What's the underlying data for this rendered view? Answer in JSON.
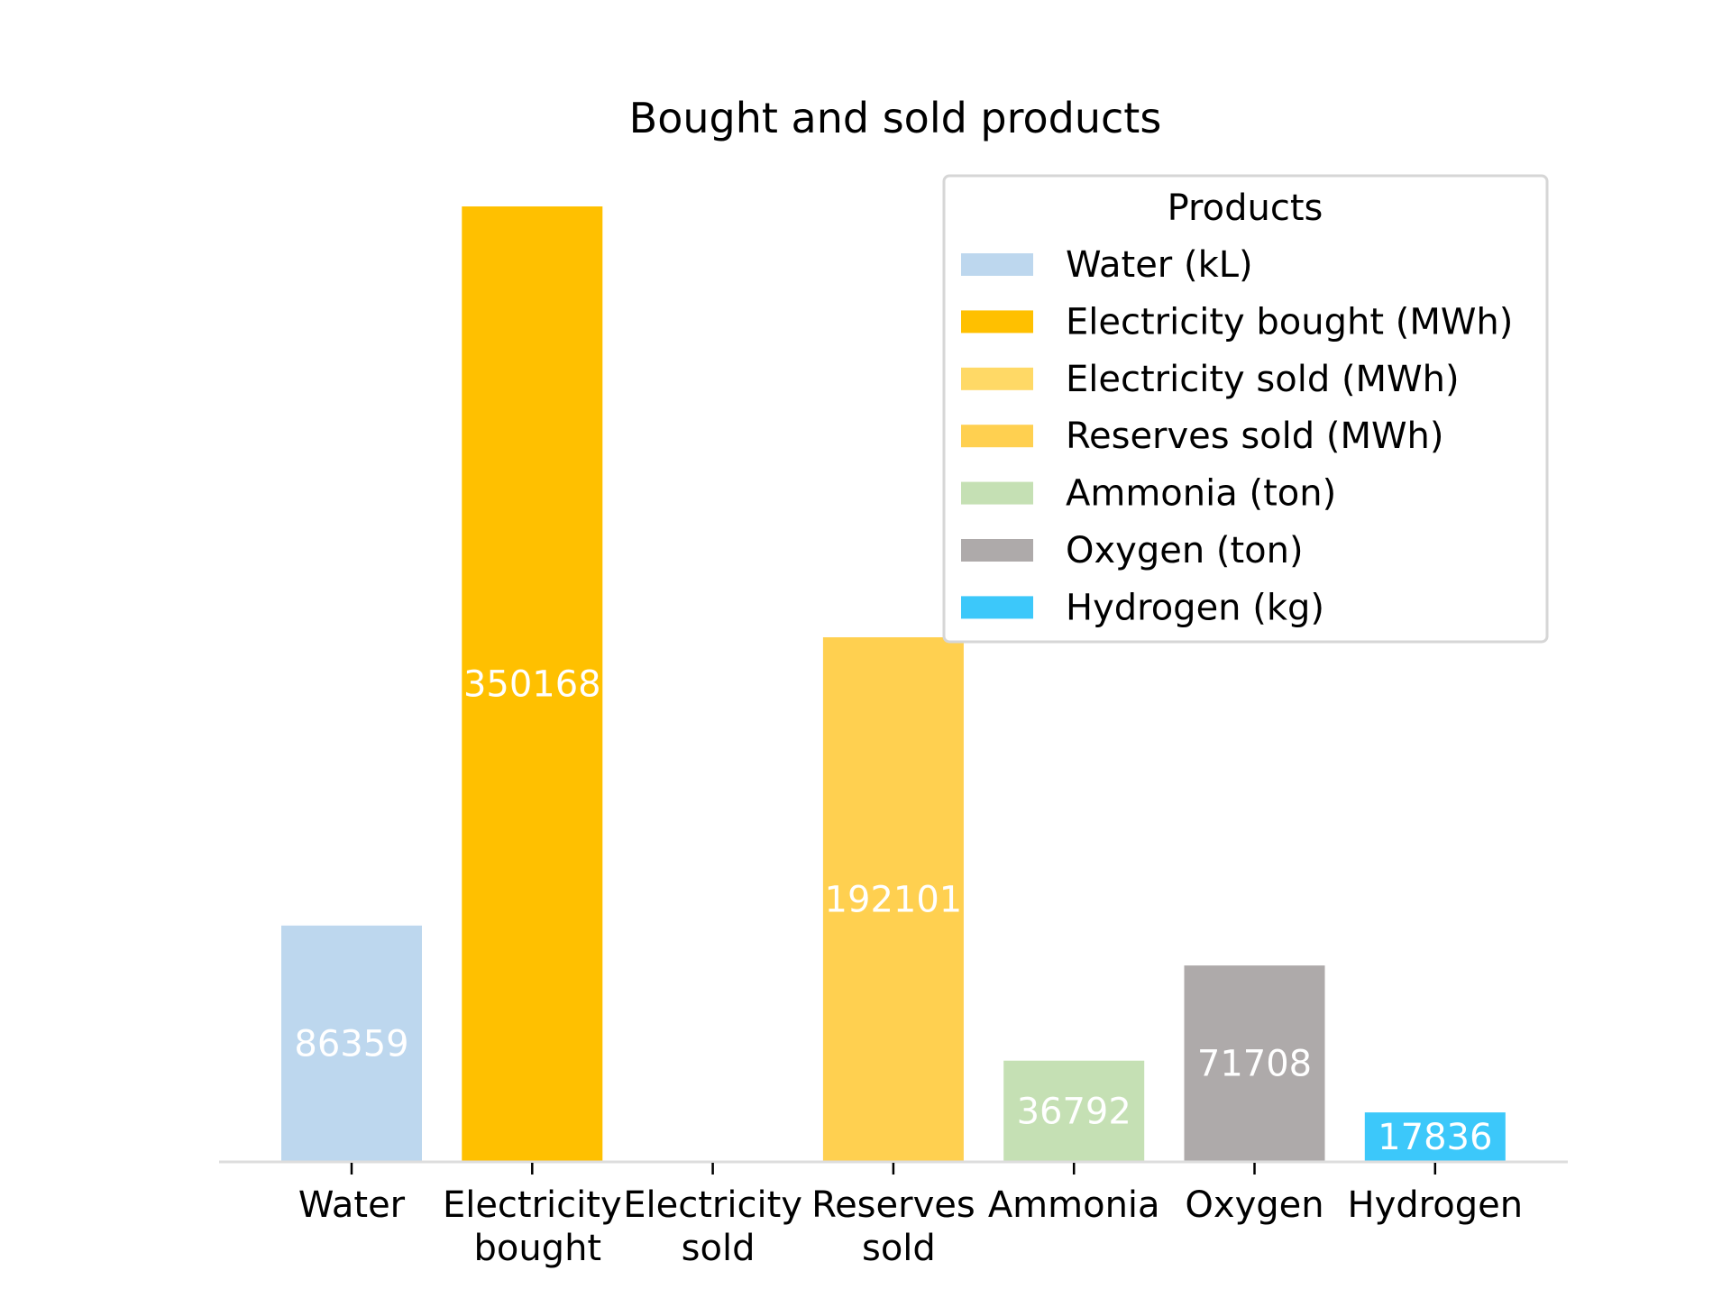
{
  "chart_data": {
    "type": "bar",
    "title": "Bought and sold products",
    "xlabel": "",
    "ylabel": "",
    "ylim": [
      0,
      370000
    ],
    "grid": false,
    "legend_position": "top-right",
    "legend_title": "Products",
    "categories": [
      [
        "Water"
      ],
      [
        "Electricity",
        "bought"
      ],
      [
        "Electricity",
        "sold"
      ],
      [
        "Reserves",
        "sold"
      ],
      [
        "Ammonia"
      ],
      [
        "Oxygen"
      ],
      [
        "Hydrogen"
      ]
    ],
    "values": [
      86359,
      350168,
      0,
      192101,
      36792,
      71708,
      17836
    ],
    "value_labels": [
      "86359",
      "350168",
      "",
      "192101",
      "36792",
      "71708",
      "17836"
    ],
    "colors": [
      "#bdd7ee",
      "#ffc000",
      "#ffd966",
      "#ffd050",
      "#c5e0b4",
      "#aeaaaa",
      "#3cc8fa"
    ],
    "legend": [
      {
        "label": "Water (kL)",
        "color": "#bdd7ee"
      },
      {
        "label": "Electricity bought (MWh)",
        "color": "#ffc000"
      },
      {
        "label": "Electricity sold (MWh)",
        "color": "#ffd966"
      },
      {
        "label": "Reserves sold (MWh)",
        "color": "#ffd050"
      },
      {
        "label": "Ammonia (ton)",
        "color": "#c5e0b4"
      },
      {
        "label": "Oxygen (ton)",
        "color": "#aeaaaa"
      },
      {
        "label": "Hydrogen (kg)",
        "color": "#3cc8fa"
      }
    ]
  }
}
